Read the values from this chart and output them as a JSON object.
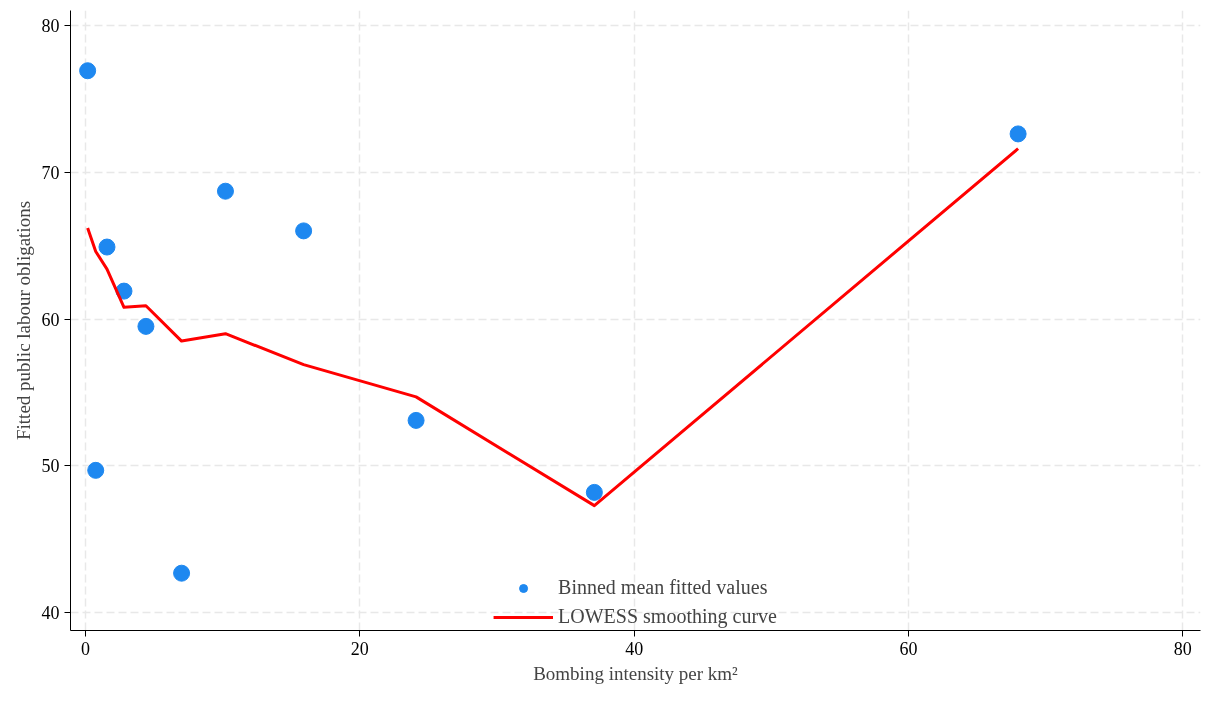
{
  "chart_data": {
    "type": "scatter",
    "xlabel": "Bombing intensity per km²",
    "ylabel": "Fitted public labour obligations",
    "xlim": [
      -1.1,
      81.3
    ],
    "ylim": [
      38.8,
      81.0
    ],
    "xticks": [
      0,
      20,
      40,
      60,
      80
    ],
    "yticks": [
      40,
      50,
      60,
      70,
      80
    ],
    "grid": true,
    "legend": "bottom",
    "series": [
      {
        "name": "Binned mean fitted values",
        "marker": "circle",
        "color": "#1e88f0",
        "x": [
          0.15,
          0.74,
          1.56,
          2.8,
          4.4,
          7.0,
          10.2,
          15.9,
          24.1,
          37.1,
          68.0
        ],
        "values": [
          76.9,
          49.7,
          64.9,
          61.9,
          59.5,
          42.7,
          68.7,
          66.0,
          53.1,
          48.2,
          72.6
        ]
      },
      {
        "name": "LOWESS smoothing curve",
        "type": "line",
        "color": "#ff0000",
        "line_style": "solid",
        "x": [
          0.15,
          0.74,
          1.56,
          2.8,
          4.4,
          7.0,
          10.2,
          15.9,
          24.1,
          37.1,
          68.0
        ],
        "values": [
          66.2,
          64.6,
          63.4,
          60.8,
          60.9,
          58.5,
          59.0,
          56.9,
          54.7,
          47.3,
          71.6
        ]
      }
    ]
  }
}
